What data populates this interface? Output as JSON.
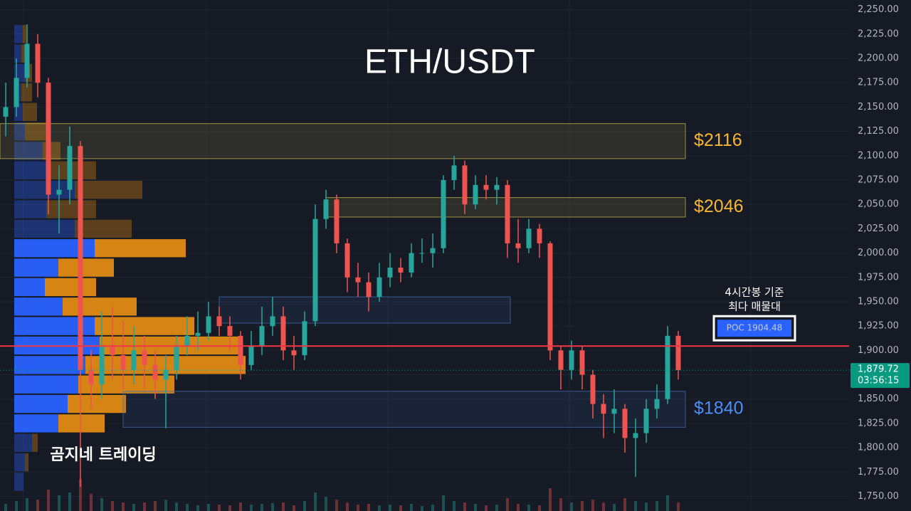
{
  "chart_data": {
    "type": "candlestick",
    "title": "ETH/USDT",
    "watermark": "곰지네 트레이딩",
    "ylim": [
      1735,
      2260
    ],
    "yticks": [
      {
        "value": 1750,
        "label": "1,750.00"
      },
      {
        "value": 1775,
        "label": "1,775.00"
      },
      {
        "value": 1800,
        "label": "1,800.00"
      },
      {
        "value": 1825,
        "label": "1,825.00"
      },
      {
        "value": 1850,
        "label": "1,850.00"
      },
      {
        "value": 1875,
        "label": "1,875.00"
      },
      {
        "value": 1900,
        "label": "1,900.00"
      },
      {
        "value": 1925,
        "label": "1,925.00"
      },
      {
        "value": 1950,
        "label": "1,950.00"
      },
      {
        "value": 1975,
        "label": "1,975.00"
      },
      {
        "value": 2000,
        "label": "2,000.00"
      },
      {
        "value": 2025,
        "label": "2,025.00"
      },
      {
        "value": 2050,
        "label": "2,050.00"
      },
      {
        "value": 2075,
        "label": "2,075.00"
      },
      {
        "value": 2100,
        "label": "2,100.00"
      },
      {
        "value": 2125,
        "label": "2,125.00"
      },
      {
        "value": 2150,
        "label": "2,150.00"
      },
      {
        "value": 2175,
        "label": "2,175.00"
      },
      {
        "value": 2200,
        "label": "2,200.00"
      },
      {
        "value": 2225,
        "label": "2,225.00"
      },
      {
        "value": 2250,
        "label": "2,250.00"
      }
    ],
    "grid": true,
    "up_color": "#26a69a",
    "down_color": "#ef5350",
    "open": [
      2140,
      2150,
      2180,
      2215,
      2175,
      2060,
      2065,
      2110,
      1880,
      1865,
      1905,
      1895,
      1880,
      1900,
      1885,
      1870,
      1880,
      1905,
      1915,
      1918,
      1935,
      1925,
      1915,
      1885,
      1905,
      1925,
      1935,
      1900,
      1895,
      1930,
      2035,
      2055,
      2010,
      1975,
      1970,
      1955,
      1975,
      1985,
      1980,
      2000,
      2000,
      2005,
      2075,
      2090,
      2050,
      2070,
      2065,
      2070,
      2010,
      2005,
      2025,
      2010,
      1900,
      1880,
      1900,
      1875,
      1845,
      1835,
      1840,
      1810,
      1815,
      1840,
      1850,
      1915
    ],
    "high": [
      2175,
      2200,
      2235,
      2225,
      2180,
      2090,
      2130,
      2115,
      1900,
      1940,
      1945,
      1930,
      1925,
      1915,
      1900,
      1895,
      1915,
      1935,
      1940,
      1950,
      1945,
      1935,
      1920,
      1920,
      1945,
      1955,
      1945,
      1915,
      1940,
      2050,
      2065,
      2060,
      2015,
      1990,
      1980,
      1990,
      2000,
      1995,
      2010,
      2015,
      2020,
      2080,
      2100,
      2095,
      2080,
      2080,
      2078,
      2075,
      2035,
      2035,
      2030,
      2012,
      1905,
      1910,
      1905,
      1880,
      1855,
      1860,
      1845,
      1830,
      1850,
      1865,
      1925,
      1920
    ],
    "low": [
      2120,
      2140,
      2170,
      2160,
      2040,
      2020,
      2050,
      1760,
      1840,
      1850,
      1870,
      1860,
      1865,
      1860,
      1850,
      1820,
      1870,
      1895,
      1900,
      1910,
      1915,
      1900,
      1870,
      1880,
      1895,
      1915,
      1890,
      1880,
      1890,
      1925,
      2025,
      2000,
      1960,
      1955,
      1940,
      1950,
      1965,
      1970,
      1975,
      1990,
      1985,
      2000,
      2065,
      2040,
      2045,
      2055,
      2050,
      1995,
      1990,
      2000,
      1995,
      1890,
      1860,
      1870,
      1860,
      1830,
      1810,
      1815,
      1795,
      1770,
      1805,
      1830,
      1845,
      1870
    ],
    "close": [
      2150,
      2180,
      2215,
      2175,
      2060,
      2065,
      2110,
      1880,
      1865,
      1905,
      1895,
      1880,
      1900,
      1885,
      1870,
      1880,
      1905,
      1915,
      1918,
      1935,
      1925,
      1915,
      1885,
      1905,
      1925,
      1935,
      1900,
      1895,
      1930,
      2035,
      2055,
      2010,
      1975,
      1970,
      1955,
      1975,
      1985,
      1980,
      2000,
      2000,
      2005,
      2075,
      2090,
      2050,
      2070,
      2065,
      2070,
      2010,
      2005,
      2025,
      2010,
      1900,
      1880,
      1900,
      1875,
      1845,
      1835,
      1840,
      1810,
      1815,
      1840,
      1850,
      1915,
      1879.72
    ],
    "volumes": [
      10,
      14,
      18,
      16,
      30,
      22,
      26,
      45,
      24,
      18,
      14,
      12,
      10,
      12,
      14,
      16,
      12,
      10,
      8,
      10,
      9,
      8,
      12,
      9,
      10,
      11,
      12,
      8,
      14,
      26,
      20,
      16,
      12,
      9,
      10,
      8,
      9,
      8,
      10,
      7,
      9,
      22,
      14,
      12,
      10,
      8,
      9,
      18,
      10,
      9,
      8,
      32,
      18,
      12,
      14,
      16,
      12,
      10,
      18,
      14,
      12,
      14,
      22,
      12
    ],
    "volume_profile": {
      "bucket_size": 20,
      "buy_color": "#2962ff",
      "sell_color": "#e08a12",
      "value_area": [
        1815,
        2015
      ],
      "rows": [
        {
          "low": 1755,
          "buy": 13,
          "sell": 0
        },
        {
          "low": 1775,
          "buy": 15,
          "sell": 5
        },
        {
          "low": 1795,
          "buy": 25,
          "sell": 8
        },
        {
          "low": 1815,
          "buy": 62,
          "sell": 65
        },
        {
          "low": 1835,
          "buy": 75,
          "sell": 82
        },
        {
          "low": 1855,
          "buy": 90,
          "sell": 135
        },
        {
          "low": 1875,
          "buy": 100,
          "sell": 225
        },
        {
          "low": 1895,
          "buy": 120,
          "sell": 200
        },
        {
          "low": 1915,
          "buy": 113,
          "sell": 140
        },
        {
          "low": 1935,
          "buy": 68,
          "sell": 104
        },
        {
          "low": 1955,
          "buy": 43,
          "sell": 72
        },
        {
          "low": 1975,
          "buy": 62,
          "sell": 78
        },
        {
          "low": 1995,
          "buy": 113,
          "sell": 128
        },
        {
          "low": 2015,
          "buy": 85,
          "sell": 80
        },
        {
          "low": 2035,
          "buy": 45,
          "sell": 70
        },
        {
          "low": 2055,
          "buy": 85,
          "sell": 95
        },
        {
          "low": 2075,
          "buy": 50,
          "sell": 65
        },
        {
          "low": 2095,
          "buy": 40,
          "sell": 25
        },
        {
          "low": 2115,
          "buy": 15,
          "sell": 35
        },
        {
          "low": 2135,
          "buy": 12,
          "sell": 20
        },
        {
          "low": 2155,
          "buy": 10,
          "sell": 15
        },
        {
          "low": 2175,
          "buy": 15,
          "sell": 10
        },
        {
          "low": 2195,
          "buy": 10,
          "sell": 10
        },
        {
          "low": 2215,
          "buy": 12,
          "sell": 5
        }
      ]
    },
    "zones": [
      {
        "label": "$2116",
        "low": 2097,
        "high": 2133,
        "start": 0,
        "end": 64,
        "color": "#c8b84a",
        "label_color": "#f5b731"
      },
      {
        "label": "$2046",
        "low": 2037,
        "high": 2057,
        "start": 30,
        "end": 64,
        "color": "#c8b84a",
        "label_color": "#f5b731"
      },
      {
        "low": 1928,
        "high": 1955,
        "start": 20,
        "end": 47.6,
        "color": "#3d6fb4"
      },
      {
        "label": "$1840",
        "low": 1821,
        "high": 1858,
        "start": 11,
        "end": 64,
        "color": "#3d6fb4",
        "label_color": "#4b8ef5"
      }
    ],
    "poc": {
      "value": 1904.48,
      "label": "POC 1904.48",
      "note": [
        "4시간봉 기준",
        "최다 매물대"
      ],
      "color": "#f23645"
    },
    "last_price": {
      "value": 1879.72,
      "label": "1,879.72",
      "countdown": "03:56:15",
      "color": "#089981"
    }
  }
}
